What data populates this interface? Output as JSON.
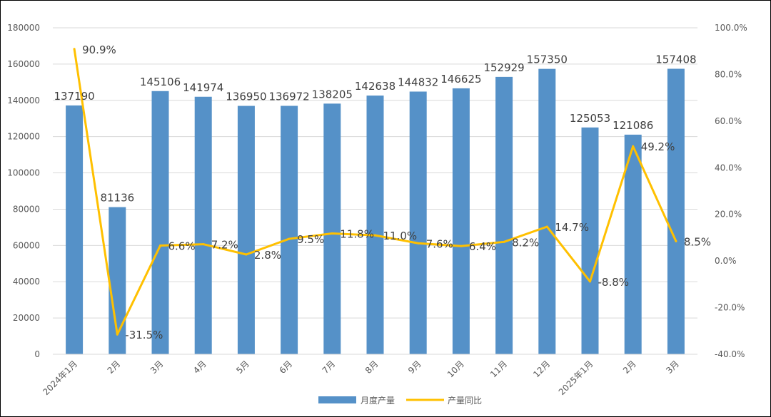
{
  "chart_data": {
    "type": "bar",
    "categories": [
      "2024年1月",
      "2月",
      "3月",
      "4月",
      "5月",
      "6月",
      "7月",
      "8月",
      "9月",
      "10月",
      "11月",
      "12月",
      "2025年1月",
      "2月",
      "3月"
    ],
    "series": [
      {
        "name": "月度产量",
        "type": "bar",
        "axis": "left",
        "color": "#5591C8",
        "values": [
          137190,
          81136,
          145106,
          141974,
          136950,
          136972,
          138205,
          142638,
          144832,
          146625,
          152929,
          157350,
          125053,
          121086,
          157408
        ],
        "labels": [
          "137190",
          "81136",
          "145106",
          "141974",
          "136950",
          "136972",
          "138205",
          "142638",
          "144832",
          "146625",
          "152929",
          "157350",
          "125053",
          "121086",
          "157408"
        ]
      },
      {
        "name": "产量同比",
        "type": "line",
        "axis": "right",
        "color": "#FFC000",
        "values": [
          90.9,
          -31.5,
          6.6,
          7.2,
          2.8,
          9.5,
          11.8,
          11.0,
          7.6,
          6.4,
          8.2,
          14.7,
          -8.8,
          49.2,
          8.5
        ],
        "labels": [
          "90.9%",
          "-31.5%",
          "6.6%",
          "7.2%",
          "2.8%",
          "9.5%",
          "11.8%",
          "11.0%",
          "7.6%",
          "6.4%",
          "8.2%",
          "14.7%",
          "-8.8%",
          "49.2%",
          "8.5%"
        ]
      }
    ],
    "y_left": {
      "min": 0,
      "max": 180000,
      "ticks": [
        "0",
        "20000",
        "40000",
        "60000",
        "80000",
        "100000",
        "120000",
        "140000",
        "160000",
        "180000"
      ]
    },
    "y_right": {
      "min": -40,
      "max": 100,
      "ticks": [
        "-40.0%",
        "-20.0%",
        "0.0%",
        "20.0%",
        "40.0%",
        "60.0%",
        "80.0%",
        "100.0%"
      ]
    },
    "grid": true,
    "legend": {
      "position": "bottom-center",
      "items": [
        "月度产量",
        "产量同比"
      ]
    },
    "title": "",
    "xlabel": "",
    "ylabel": ""
  }
}
